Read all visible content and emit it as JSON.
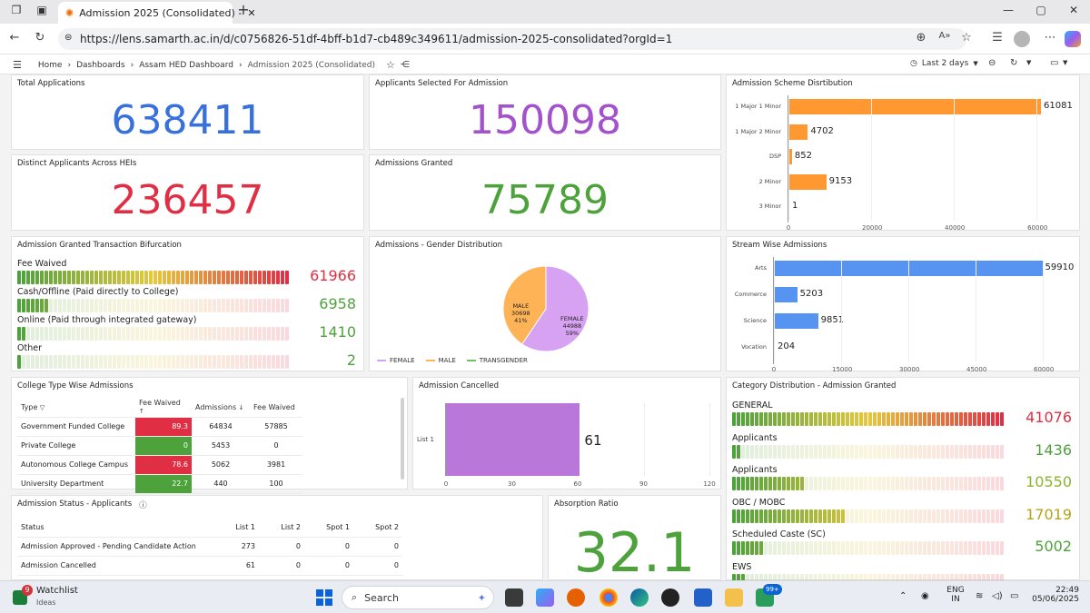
{
  "browser": {
    "tab_title": "Admission 2025 (Consolidated) -",
    "url": "https://lens.samarth.ac.in/d/c0756826-51df-4bff-b1d7-cb489c349611/admission-2025-consolidated?orgId=1"
  },
  "nav": {
    "breadcrumbs": [
      "Home",
      "Dashboards",
      "Assam HED Dashboard",
      "Admission 2025 (Consolidated)"
    ],
    "time_range": "Last 2 days"
  },
  "stats": {
    "total_applications": {
      "title": "Total Applications",
      "value": "638411",
      "color": "#3871dc"
    },
    "applicants_selected": {
      "title": "Applicants Selected For Admission",
      "value": "150098",
      "color": "#a352cc"
    },
    "distinct_applicants": {
      "title": "Distinct Applicants Across HEIs",
      "value": "236457",
      "color": "#e02f44"
    },
    "admissions_granted": {
      "title": "Admissions Granted",
      "value": "75789",
      "color": "#4ea23c"
    },
    "absorption_ratio": {
      "title": "Absorption Ratio",
      "value": "32.1",
      "color": "#4ea23c"
    }
  },
  "scheme": {
    "title": "Admission Scheme Disrtibution",
    "axis": [
      "0",
      "20000",
      "40000",
      "60000"
    ],
    "color": "#ff9830",
    "bars": [
      {
        "label": "1 Major 1 Minor",
        "value": 61081,
        "text": "61081"
      },
      {
        "label": "1 Major 2 Minor",
        "value": 4702,
        "text": "4702"
      },
      {
        "label": "DSP",
        "value": 852,
        "text": "852"
      },
      {
        "label": "2 Minor",
        "value": 9153,
        "text": "9153"
      },
      {
        "label": "3 Minor",
        "value": 1,
        "text": "1"
      }
    ]
  },
  "stream": {
    "title": "Stream Wise Admissions",
    "axis": [
      "0",
      "15000",
      "30000",
      "45000",
      "60000"
    ],
    "color": "#5794f2",
    "bars": [
      {
        "label": "Arts",
        "value": 59910,
        "text": "59910"
      },
      {
        "label": "Commerce",
        "value": 5203,
        "text": "5203"
      },
      {
        "label": "Science",
        "value": 9851,
        "text": "9851"
      },
      {
        "label": "Vocation",
        "value": 204,
        "text": "204"
      }
    ]
  },
  "transaction": {
    "title": "Admission Granted Transaction Bifurcation",
    "items": [
      {
        "label": "Fee Waived",
        "value": "61966",
        "fraction": 1.0,
        "color": "#e02f44"
      },
      {
        "label": "Cash/Offline (Paid directly to College)",
        "value": "6958",
        "fraction": 0.11,
        "color": "#4ea23c"
      },
      {
        "label": "Online (Paid through integrated gateway)",
        "value": "1410",
        "fraction": 0.025,
        "color": "#4ea23c"
      },
      {
        "label": "Other",
        "value": "2",
        "fraction": 0.005,
        "color": "#4ea23c"
      }
    ]
  },
  "gender": {
    "title": "Admissions - Gender Distribution",
    "slices": [
      {
        "name": "FEMALE",
        "value": 44988,
        "text": "44988",
        "pct": "59%",
        "color": "#d6a2f1"
      },
      {
        "name": "MALE",
        "value": 30698,
        "text": "30698",
        "pct": "41%",
        "color": "#ffb357"
      },
      {
        "name": "TRANSGENDER",
        "value": 0,
        "text": "",
        "pct": "",
        "color": "#73bf69"
      }
    ],
    "legend": [
      "FEMALE",
      "MALE",
      "TRANSGENDER"
    ]
  },
  "college": {
    "title": "College Type Wise Admissions",
    "headers": [
      "Type",
      "Fee Waived",
      "Admissions",
      "Fee Waived"
    ],
    "rows": [
      {
        "type": "Government Funded College",
        "pct": "89.3",
        "admissions": "64834",
        "waived": "57885",
        "color": "#e02f44"
      },
      {
        "type": "Private College",
        "pct": "0",
        "admissions": "5453",
        "waived": "0",
        "color": "#4ea23c"
      },
      {
        "type": "Autonomous College Campus",
        "pct": "78.6",
        "admissions": "5062",
        "waived": "3981",
        "color": "#e02f44"
      },
      {
        "type": "University Department",
        "pct": "22.7",
        "admissions": "440",
        "waived": "100",
        "color": "#4ea23c"
      }
    ]
  },
  "cancelled": {
    "title": "Admission Cancelled",
    "category": "List 1",
    "value": 61,
    "text": "61",
    "axis": [
      "0",
      "30",
      "60",
      "90",
      "120"
    ],
    "max": 120,
    "color": "#b877d9"
  },
  "status": {
    "title": "Admission Status - Applicants",
    "headers": [
      "Status",
      "List 1",
      "List 2",
      "Spot 1",
      "Spot 2"
    ],
    "rows": [
      {
        "status": "Admission Approved - Pending Candidate Action",
        "l1": "273",
        "l2": "0",
        "s1": "0",
        "s2": "0"
      },
      {
        "status": "Admission Cancelled",
        "l1": "61",
        "l2": "0",
        "s1": "0",
        "s2": "0"
      }
    ]
  },
  "category": {
    "title": "Category Distribution - Admission Granted",
    "items": [
      {
        "label": "GENERAL",
        "value": "41076",
        "fraction": 1.0,
        "color": "#e02f44"
      },
      {
        "label": "Applicants",
        "value": "1436",
        "fraction": 0.035,
        "color": "#4ea23c"
      },
      {
        "label": "Applicants",
        "value": "10550",
        "fraction": 0.26,
        "color": "#8ab52c"
      },
      {
        "label": "OBC / MOBC",
        "value": "17019",
        "fraction": 0.41,
        "color": "#b6a31d"
      },
      {
        "label": "Scheduled Caste (SC)",
        "value": "5002",
        "fraction": 0.12,
        "color": "#4ea23c"
      },
      {
        "label": "EWS",
        "value": "",
        "fraction": 0.05,
        "color": "#4ea23c"
      }
    ]
  },
  "taskbar": {
    "watchlist_title": "Watchlist",
    "watchlist_sub": "Ideas",
    "watchlist_badge": "9",
    "search_placeholder": "Search",
    "lang1": "ENG",
    "lang2": "IN",
    "time": "22:49",
    "date": "05/06/2025",
    "notif_badge": "99+"
  }
}
